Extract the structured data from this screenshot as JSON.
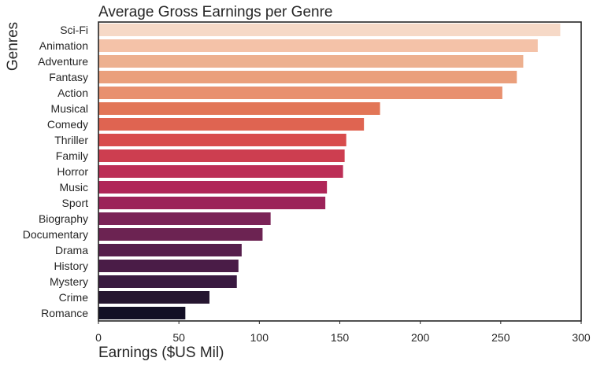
{
  "chart_data": {
    "type": "bar",
    "orientation": "horizontal",
    "title": "Average Gross Earnings per Genre",
    "xlabel": "Earnings ($US Mil)",
    "ylabel": "Genres",
    "xlim": [
      0,
      300
    ],
    "xticks": [
      0,
      50,
      100,
      150,
      200,
      250,
      300
    ],
    "grid": false,
    "categories": [
      "Sci-Fi",
      "Animation",
      "Adventure",
      "Fantasy",
      "Action",
      "Musical",
      "Comedy",
      "Thriller",
      "Family",
      "Horror",
      "Music",
      "Sport",
      "Biography",
      "Documentary",
      "Drama",
      "History",
      "Mystery",
      "Crime",
      "Romance"
    ],
    "values": [
      287,
      273,
      264,
      260,
      251,
      175,
      165,
      154,
      153,
      152,
      142,
      141,
      107,
      102,
      89,
      87,
      86,
      69,
      54
    ],
    "colors": [
      "#f6d9c7",
      "#f4c2a8",
      "#edb08f",
      "#ea9f7c",
      "#e8906f",
      "#e27657",
      "#df6451",
      "#d84c4c",
      "#cd3e50",
      "#bc2e56",
      "#b02658",
      "#9c2359",
      "#7b2357",
      "#6c2352",
      "#561e4c",
      "#4a1c47",
      "#391940",
      "#261630",
      "#130f25"
    ]
  }
}
